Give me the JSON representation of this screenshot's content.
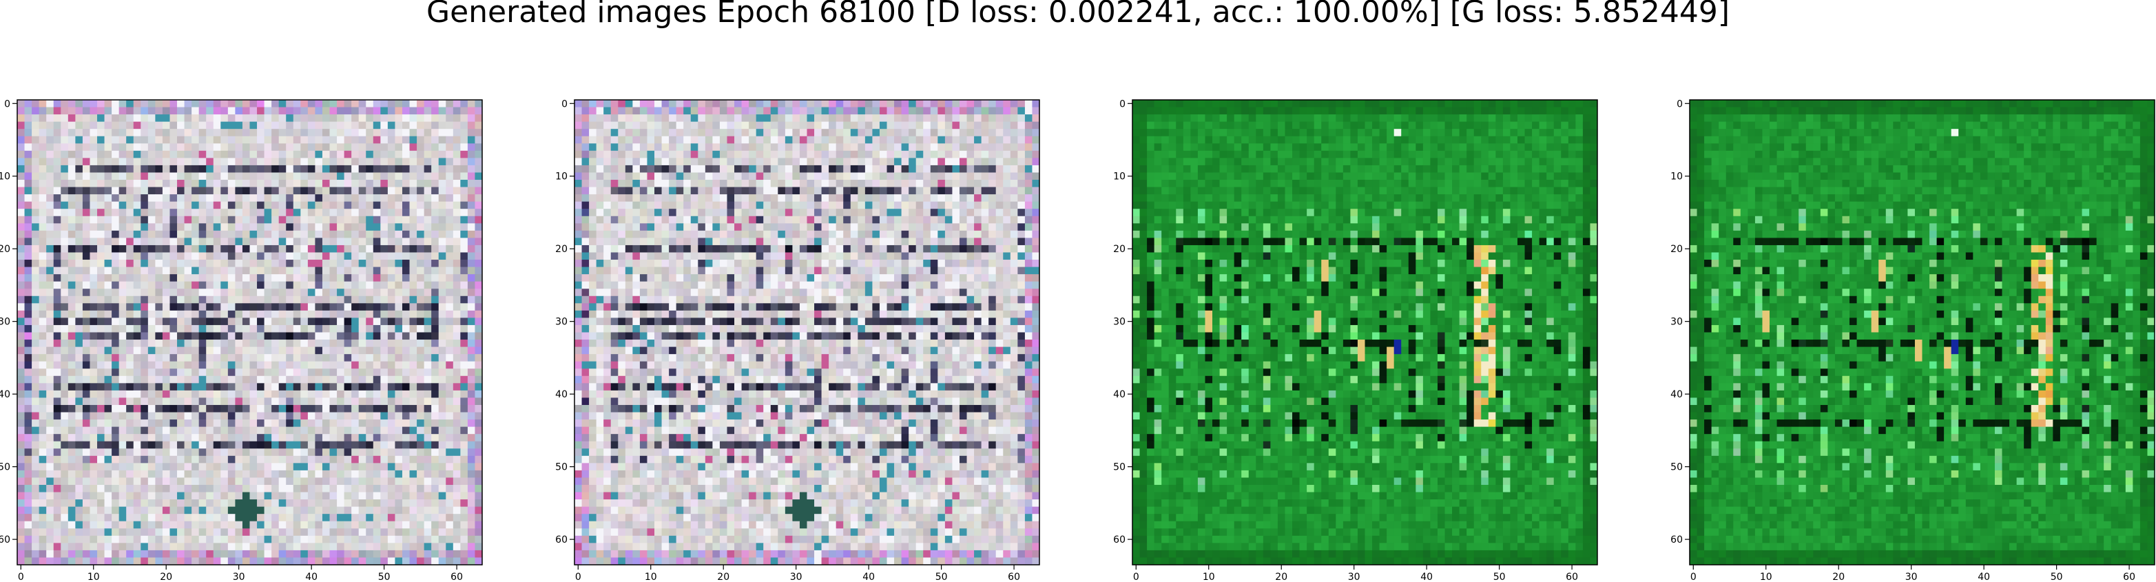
{
  "figure": {
    "title": "Generated images Epoch 68100 [D loss: 0.002241, acc.: 100.00%] [G loss: 5.852449]"
  },
  "panels": [
    {
      "name": "generated-image-1",
      "palette": "pale",
      "base_color": "#d6d2d6",
      "x_ticks": [
        "0",
        "10",
        "20",
        "30",
        "40",
        "50",
        "60"
      ],
      "y_ticks": [
        "0",
        "10",
        "20",
        "30",
        "40",
        "50",
        "60"
      ]
    },
    {
      "name": "generated-image-2",
      "palette": "pale",
      "base_color": "#d6d2d6",
      "x_ticks": [
        "0",
        "10",
        "20",
        "30",
        "40",
        "50",
        "60"
      ],
      "y_ticks": [
        "0",
        "10",
        "20",
        "30",
        "40",
        "50",
        "60"
      ]
    },
    {
      "name": "generated-image-3",
      "palette": "green",
      "base_color": "#1f9a32",
      "x_ticks": [
        "0",
        "10",
        "20",
        "30",
        "40",
        "50",
        "60"
      ],
      "y_ticks": [
        "0",
        "10",
        "20",
        "30",
        "40",
        "50",
        "60"
      ]
    },
    {
      "name": "generated-image-4",
      "palette": "green",
      "base_color": "#1f9a32",
      "x_ticks": [
        "0",
        "10",
        "20",
        "30",
        "40",
        "50",
        "60"
      ],
      "y_ticks": [
        "0",
        "10",
        "20",
        "30",
        "40",
        "50",
        "60"
      ]
    }
  ],
  "image_resolution": 64
}
